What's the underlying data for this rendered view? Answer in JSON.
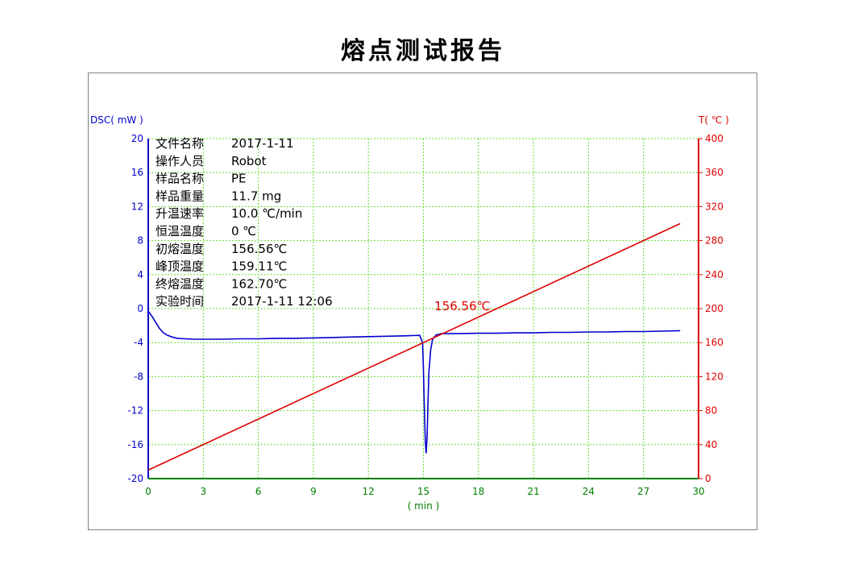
{
  "report": {
    "title": "熔点测试报告"
  },
  "info_panel": [
    {
      "label": "文件名称",
      "value": "2017-1-11"
    },
    {
      "label": "操作人员",
      "value": "Robot"
    },
    {
      "label": "样品名称",
      "value": "PE"
    },
    {
      "label": "样品重量",
      "value": "11.7 mg"
    },
    {
      "label": "升温速率",
      "value": "10.0 ℃/min"
    },
    {
      "label": "恒温温度",
      "value": "0 ℃"
    },
    {
      "label": "初熔温度",
      "value": "156.56℃"
    },
    {
      "label": "峰顶温度",
      "value": "159.11℃"
    },
    {
      "label": "终熔温度",
      "value": "162.70℃"
    },
    {
      "label": "实验时间",
      "value": "2017-1-11 12:06"
    }
  ],
  "colors": {
    "dsc": "#0000cc",
    "temperature": "#e00000",
    "xaxis": "#008000",
    "grid": "#66dd33"
  },
  "chart_data": {
    "type": "line",
    "grid": true,
    "x_axis": {
      "label": "( min )",
      "range": [
        0,
        30
      ],
      "ticks": [
        0,
        3,
        6,
        9,
        12,
        15,
        18,
        21,
        24,
        27,
        30
      ]
    },
    "y_left": {
      "label": "DSC( mW )",
      "range": [
        -20,
        20
      ],
      "ticks": [
        -20,
        -16,
        -12,
        -8,
        -4,
        0,
        4,
        8,
        12,
        16,
        20
      ]
    },
    "y_right": {
      "label": "T( ℃ )",
      "range": [
        0,
        400
      ],
      "ticks": [
        0,
        40,
        80,
        120,
        160,
        200,
        240,
        280,
        320,
        360,
        400
      ]
    },
    "series": [
      {
        "name": "DSC",
        "axis": "left",
        "x": [
          0,
          0.2,
          0.4,
          0.6,
          0.8,
          1.0,
          1.3,
          1.6,
          2.0,
          2.5,
          3.0,
          4.0,
          5.0,
          6.0,
          7.0,
          8.0,
          9.0,
          10.0,
          11.0,
          12.0,
          13.0,
          14.0,
          14.8,
          14.95,
          15.0,
          15.05,
          15.1,
          15.15,
          15.2,
          15.25,
          15.3,
          15.4,
          15.5,
          15.7,
          16.0,
          16.5,
          17.0,
          18.0,
          19.0,
          20.0,
          21.0,
          22.0,
          23.0,
          24.0,
          25.0,
          26.0,
          27.0,
          28.0,
          29.0
        ],
        "y": [
          -0.3,
          -0.9,
          -1.6,
          -2.3,
          -2.8,
          -3.1,
          -3.35,
          -3.5,
          -3.55,
          -3.6,
          -3.6,
          -3.6,
          -3.55,
          -3.55,
          -3.5,
          -3.5,
          -3.45,
          -3.4,
          -3.35,
          -3.3,
          -3.25,
          -3.2,
          -3.15,
          -4.0,
          -7.0,
          -11.5,
          -15.5,
          -17.0,
          -15.0,
          -11.0,
          -7.5,
          -4.8,
          -3.6,
          -3.1,
          -2.95,
          -2.95,
          -2.95,
          -2.9,
          -2.9,
          -2.85,
          -2.85,
          -2.8,
          -2.8,
          -2.75,
          -2.75,
          -2.7,
          -2.7,
          -2.65,
          -2.6
        ]
      },
      {
        "name": "T",
        "axis": "right",
        "x": [
          0,
          15,
          29
        ],
        "y": [
          10,
          160,
          300
        ]
      }
    ],
    "annotation": {
      "text": "156.56℃",
      "x": 15.6,
      "y_right": 198
    }
  }
}
